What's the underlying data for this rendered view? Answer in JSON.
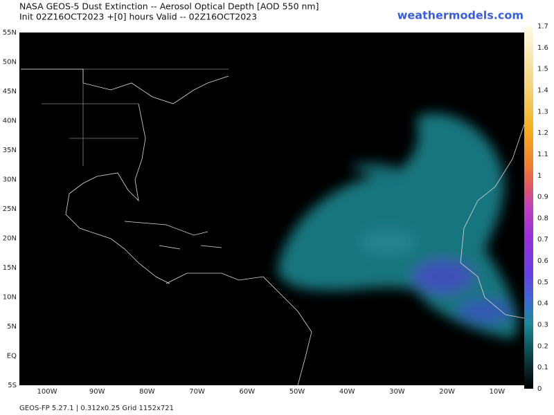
{
  "header": {
    "title": "NASA GEOS-5 Dust Extinction -- Aerosol Optical Depth [AOD 550 nm]",
    "subtitle": "Init 02Z16OCT2023 +[0] hours Valid -- 02Z16OCT2023",
    "site": "weathermodels.com"
  },
  "map": {
    "lat_labels": [
      "55N",
      "50N",
      "45N",
      "40N",
      "35N",
      "30N",
      "25N",
      "20N",
      "15N",
      "10N",
      "5N",
      "EQ",
      "5S"
    ],
    "lon_labels": [
      "100W",
      "90W",
      "80W",
      "70W",
      "60W",
      "50W",
      "40W",
      "30W",
      "20W",
      "10W"
    ]
  },
  "colorbar": {
    "labels": [
      "1.7",
      "1.6",
      "1.5",
      "1.4",
      "1.3",
      "1.2",
      "1.1",
      "1",
      "0.9",
      "0.8",
      "0.7",
      "0.6",
      "0.5",
      "0.4",
      "0.3",
      "0.2",
      "0.1",
      "0"
    ]
  },
  "footer": {
    "text": "GEOS-FP 5.27.1 | 0.312x0.25 Grid 1152x721"
  }
}
